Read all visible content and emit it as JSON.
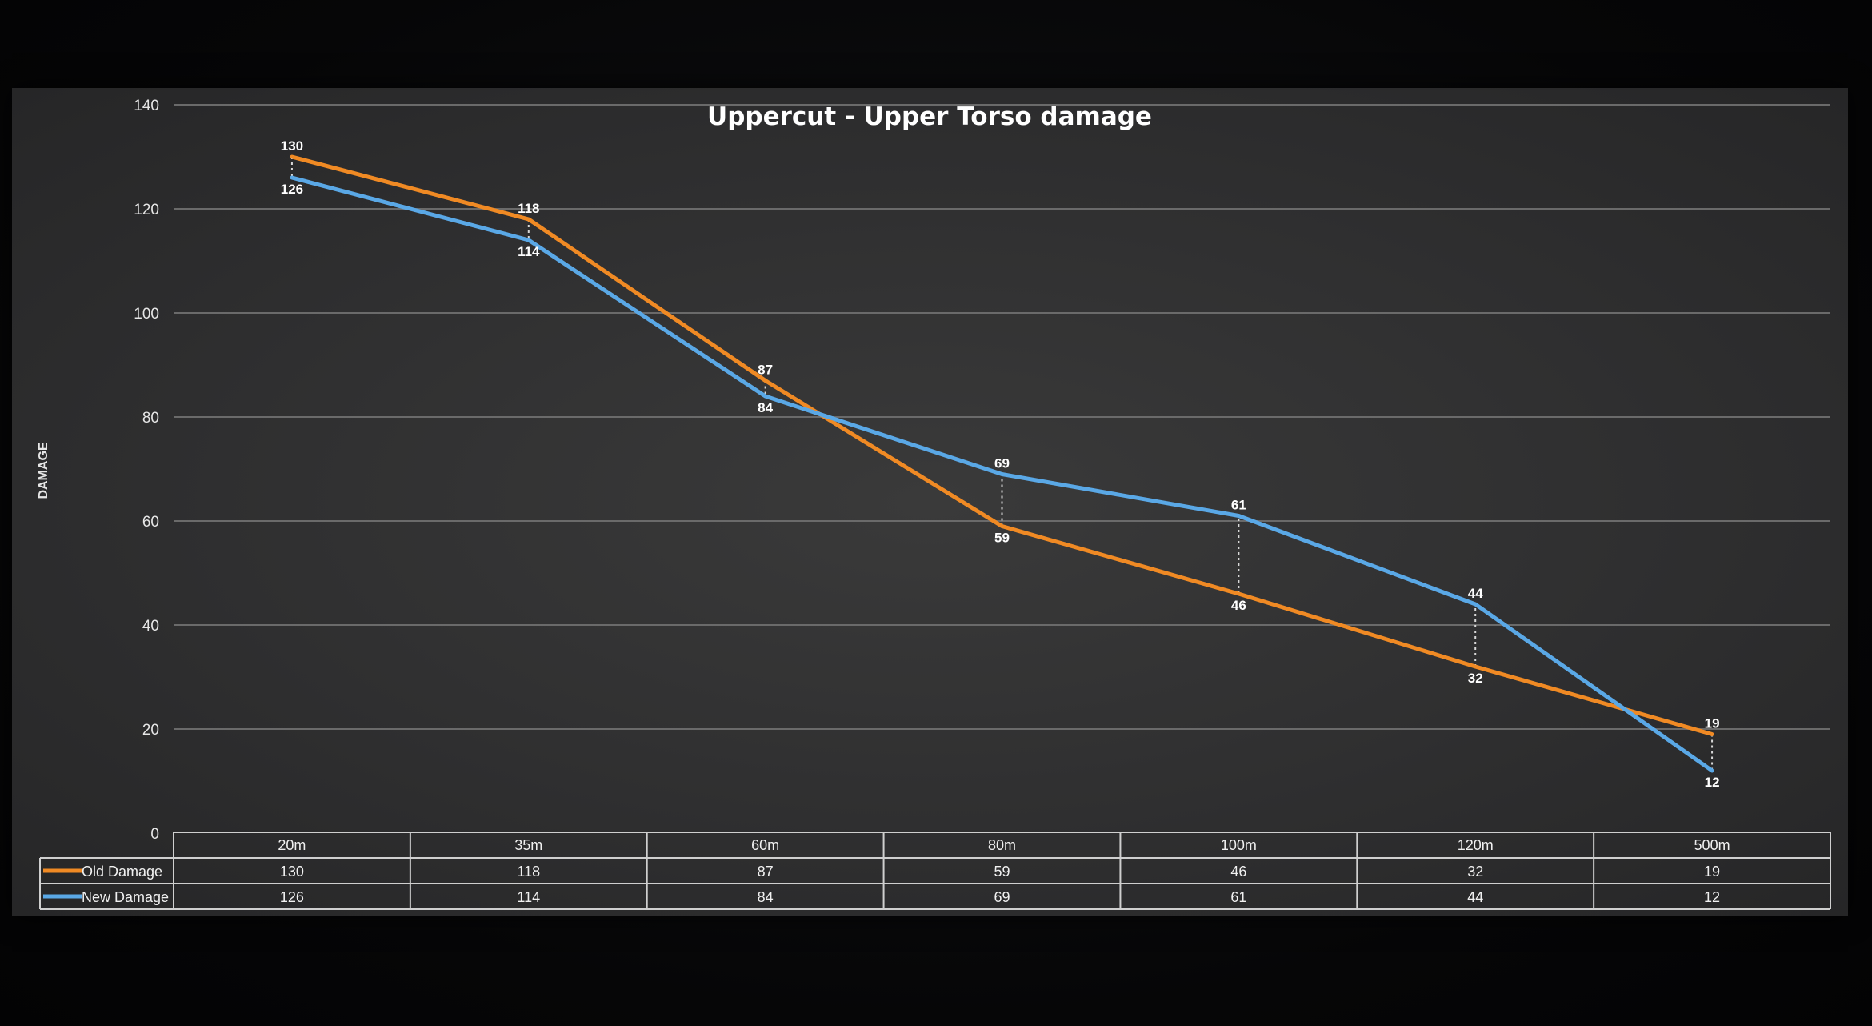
{
  "chart_data": {
    "type": "line",
    "title": "Uppercut - Upper Torso damage",
    "xlabel": "",
    "ylabel": "DAMAGE",
    "categories": [
      "20m",
      "35m",
      "60m",
      "80m",
      "100m",
      "120m",
      "500m"
    ],
    "series": [
      {
        "name": "Old Damage",
        "color": "#f08a24",
        "values": [
          130,
          118,
          87,
          59,
          46,
          32,
          19
        ]
      },
      {
        "name": "New Damage",
        "color": "#5aa8e6",
        "values": [
          126,
          114,
          84,
          69,
          61,
          44,
          12
        ]
      }
    ],
    "ylim": [
      0,
      140
    ],
    "yticks": [
      "0",
      "20",
      "40",
      "60",
      "80",
      "100",
      "120",
      "140"
    ],
    "grid": true,
    "legend": "data-table-left",
    "drop_lines": true
  }
}
